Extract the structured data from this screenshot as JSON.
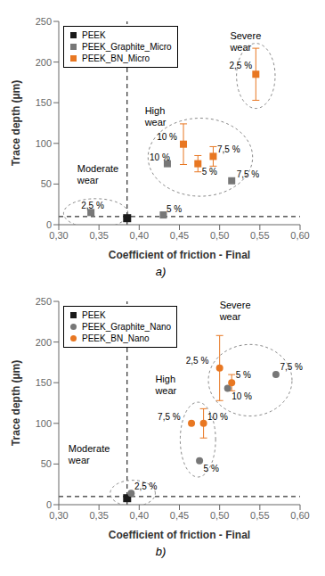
{
  "chart_data": [
    {
      "type": "scatter",
      "x_label": "Coefficient of friction - Final",
      "y_label": "Trace depth (µm)",
      "xlim": [
        0.3,
        0.6
      ],
      "ylim": [
        0,
        250
      ],
      "xticks": [
        {
          "value": 0.3,
          "label": "0,30"
        },
        {
          "value": 0.35,
          "label": "0,35"
        },
        {
          "value": 0.4,
          "label": "0,40"
        },
        {
          "value": 0.45,
          "label": "0,45"
        },
        {
          "value": 0.5,
          "label": "0,50"
        },
        {
          "value": 0.55,
          "label": "0,55"
        },
        {
          "value": 0.6,
          "label": "0,60"
        }
      ],
      "yticks": [
        0,
        50,
        100,
        150,
        200,
        250
      ],
      "vline": 0.385,
      "hline": 10,
      "legend": "upper left",
      "series": [
        {
          "name": "PEEK",
          "color": "#1a1a1a",
          "marker": "square",
          "x": [
            0.385
          ],
          "y": [
            8
          ]
        },
        {
          "name": "PEEK_Graphite_Micro",
          "color": "#777777",
          "marker": "square",
          "x": [
            0.34,
            0.43,
            0.435,
            0.515
          ],
          "y": [
            15,
            12,
            75,
            54
          ]
        },
        {
          "name": "PEEK_BN_Micro",
          "color": "#E87722",
          "marker": "square",
          "x": [
            0.455,
            0.473,
            0.492,
            0.545
          ],
          "y": [
            99,
            75,
            84,
            185
          ],
          "error": [
            25,
            10,
            12,
            32
          ]
        }
      ],
      "ellipses": [
        {
          "cx": 0.346,
          "cy": 14,
          "rx": 0.04,
          "ry": 18
        },
        {
          "cx": 0.476,
          "cy": 83,
          "rx": 0.065,
          "ry": 48
        },
        {
          "cx": 0.545,
          "cy": 183,
          "rx": 0.024,
          "ry": 40
        }
      ],
      "annotations": [
        {
          "text": "Moderate\nwear",
          "x": 0.323,
          "y": 62
        },
        {
          "text": "High\nwear",
          "x": 0.407,
          "y": 133
        },
        {
          "text": "Severe\nwear",
          "x": 0.513,
          "y": 225
        }
      ],
      "point_labels": [
        {
          "text": "2,5 %",
          "x": 0.328,
          "y": 17
        },
        {
          "text": "5 %",
          "x": 0.434,
          "y": 13
        },
        {
          "text": "10 %",
          "x": 0.413,
          "y": 77
        },
        {
          "text": "7,5 %",
          "x": 0.521,
          "y": 56
        },
        {
          "text": "10 %",
          "x": 0.422,
          "y": 102
        },
        {
          "text": "5 %",
          "x": 0.478,
          "y": 59
        },
        {
          "text": "7,5 %",
          "x": 0.497,
          "y": 87
        },
        {
          "text": "2,5 %",
          "x": 0.512,
          "y": 190
        }
      ],
      "panel_label": "a)"
    },
    {
      "type": "scatter",
      "x_label": "Coefficient of friction - Final",
      "y_label": "Trace depth (µm)",
      "xlim": [
        0.3,
        0.6
      ],
      "ylim": [
        0,
        250
      ],
      "xticks": [
        {
          "value": 0.3,
          "label": "0,30"
        },
        {
          "value": 0.35,
          "label": "0,35"
        },
        {
          "value": 0.4,
          "label": "0,40"
        },
        {
          "value": 0.45,
          "label": "0,45"
        },
        {
          "value": 0.5,
          "label": "0,50"
        },
        {
          "value": 0.55,
          "label": "0,55"
        },
        {
          "value": 0.6,
          "label": "0,60"
        }
      ],
      "yticks": [
        0,
        50,
        100,
        150,
        200,
        250
      ],
      "vline": 0.385,
      "hline": 10,
      "legend": "upper left",
      "series": [
        {
          "name": "PEEK",
          "color": "#1a1a1a",
          "marker": "square",
          "x": [
            0.385
          ],
          "y": [
            8
          ]
        },
        {
          "name": "PEEK_Graphite_Nano",
          "color": "#777777",
          "marker": "circle",
          "x": [
            0.39,
            0.475,
            0.51,
            0.57
          ],
          "y": [
            14,
            54,
            143,
            160
          ]
        },
        {
          "name": "PEEK_BN_Nano",
          "color": "#E87722",
          "marker": "circle",
          "x": [
            0.465,
            0.48,
            0.515,
            0.5
          ],
          "y": [
            100,
            100,
            150,
            168
          ],
          "error": [
            0,
            18,
            10,
            40
          ]
        }
      ],
      "ellipses": [
        {
          "cx": 0.392,
          "cy": 14,
          "rx": 0.028,
          "ry": 16
        },
        {
          "cx": 0.473,
          "cy": 80,
          "rx": 0.022,
          "ry": 46
        },
        {
          "cx": 0.538,
          "cy": 153,
          "rx": 0.052,
          "ry": 44
        }
      ],
      "annotations": [
        {
          "text": "Moderate\nwear",
          "x": 0.312,
          "y": 62
        },
        {
          "text": "High\nwear",
          "x": 0.42,
          "y": 148
        },
        {
          "text": "Severe\nwear",
          "x": 0.5,
          "y": 238
        }
      ],
      "point_labels": [
        {
          "text": "2,5 %",
          "x": 0.394,
          "y": 16
        },
        {
          "text": "5 %",
          "x": 0.48,
          "y": 38
        },
        {
          "text": "10 %",
          "x": 0.515,
          "y": 127
        },
        {
          "text": "7,5 %",
          "x": 0.575,
          "y": 163
        },
        {
          "text": "7,5 %",
          "x": 0.423,
          "y": 102
        },
        {
          "text": "10 %",
          "x": 0.485,
          "y": 102
        },
        {
          "text": "5 %",
          "x": 0.52,
          "y": 153
        },
        {
          "text": "2,5 %",
          "x": 0.458,
          "y": 171
        }
      ],
      "panel_label": "b)"
    }
  ]
}
